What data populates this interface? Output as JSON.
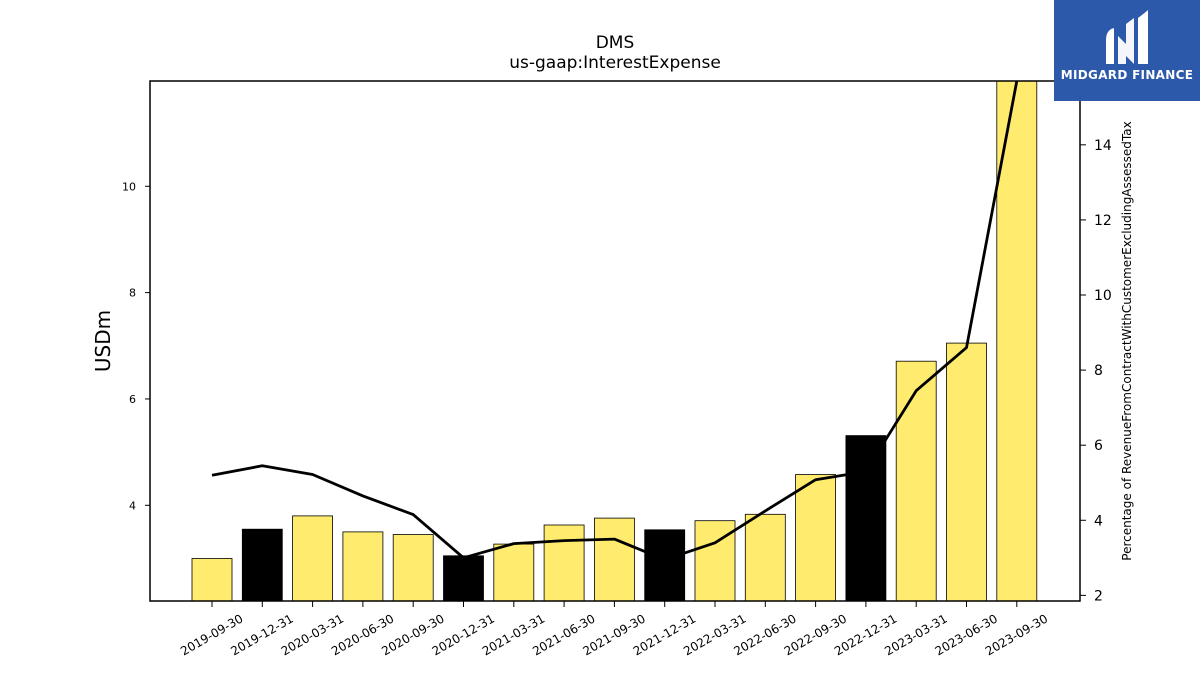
{
  "chart_data": {
    "type": "bar",
    "title": "DMS",
    "subtitle": "us-gaap:InterestExpense",
    "ylabel": "USDm",
    "y2label": "Percentage of RevenueFromContractWithCustomerExcludingAssessedTax",
    "ylim": [
      2.2,
      11.98
    ],
    "y2lim": [
      1.85,
      15.7
    ],
    "yticks": [
      4,
      6,
      8,
      10
    ],
    "y2ticks": [
      2,
      4,
      6,
      8,
      10,
      12,
      14
    ],
    "categories": [
      "2019-09-30",
      "2019-12-31",
      "2020-03-31",
      "2020-06-30",
      "2020-09-30",
      "2020-12-31",
      "2021-03-31",
      "2021-06-30",
      "2021-09-30",
      "2021-12-31",
      "2022-03-31",
      "2022-06-30",
      "2022-09-30",
      "2022-12-31",
      "2023-03-31",
      "2023-06-30",
      "2023-09-30"
    ],
    "series": [
      {
        "kind": "bar",
        "axis": "left",
        "values": [
          3.0,
          3.55,
          3.8,
          3.5,
          3.45,
          3.05,
          3.27,
          3.63,
          3.76,
          3.54,
          3.71,
          3.83,
          4.58,
          5.31,
          6.71,
          7.05,
          11.98
        ],
        "colors": [
          "#ffec6e",
          "#000000",
          "#ffec6e",
          "#ffec6e",
          "#ffec6e",
          "#000000",
          "#ffec6e",
          "#ffec6e",
          "#ffec6e",
          "#000000",
          "#ffec6e",
          "#ffec6e",
          "#ffec6e",
          "#000000",
          "#ffec6e",
          "#ffec6e",
          "#ffec6e"
        ]
      },
      {
        "kind": "line",
        "axis": "right",
        "color": "#000000",
        "values": [
          5.2,
          5.45,
          5.22,
          4.65,
          4.15,
          3.0,
          3.38,
          3.46,
          3.5,
          2.95,
          3.4,
          4.25,
          5.08,
          5.3,
          7.45,
          8.6,
          15.7
        ]
      }
    ],
    "grid": false,
    "legend": "none"
  },
  "logo": {
    "text": "MIDGARD FINANCE",
    "color": "#2c59a9"
  }
}
